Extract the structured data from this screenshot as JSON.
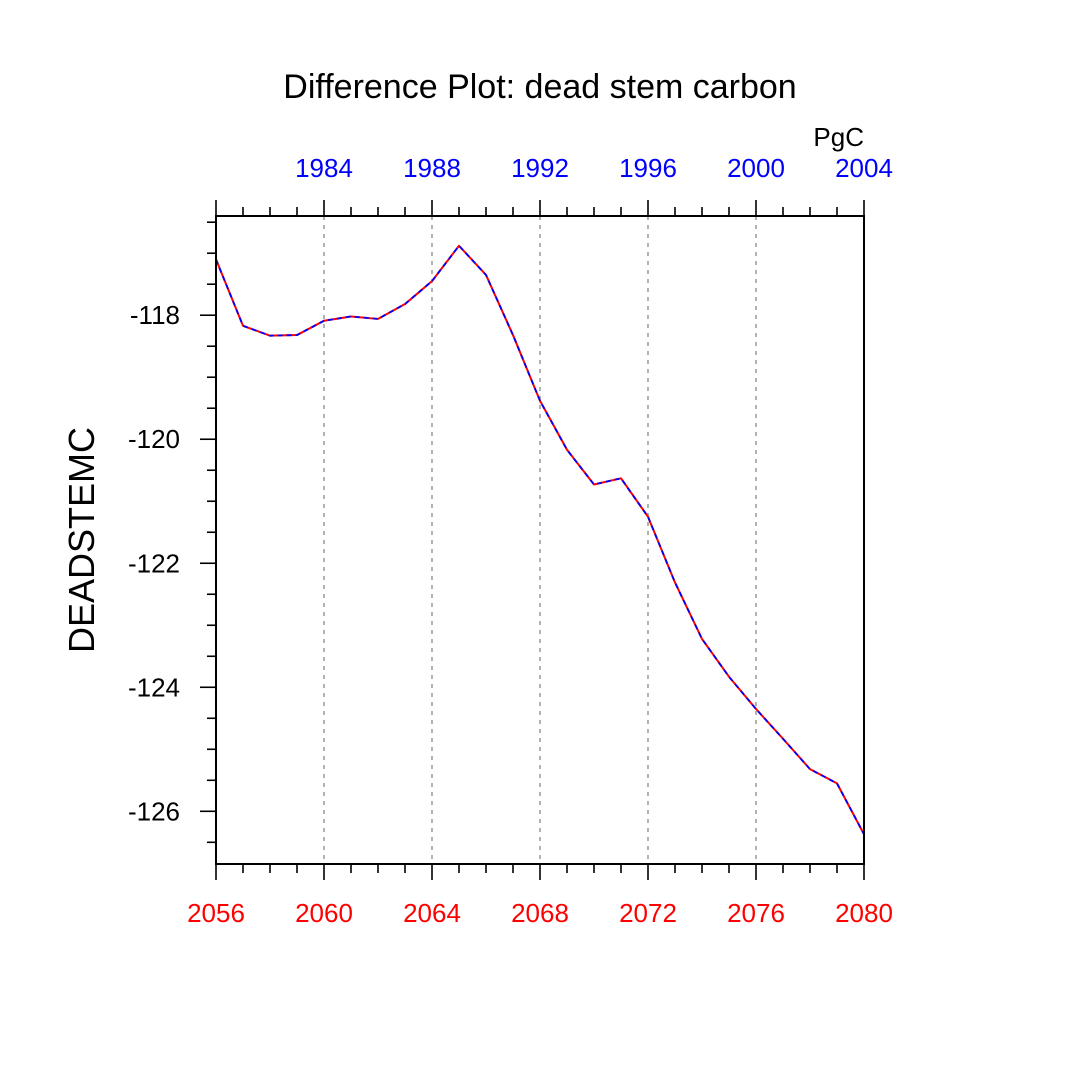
{
  "chart_data": {
    "type": "line",
    "title": "Difference Plot: dead stem carbon",
    "ylabel": "DEADSTEMC",
    "units": "PgC",
    "x_bottom": {
      "range": [
        2056,
        2080
      ],
      "ticks": [
        "2056",
        "2060",
        "2064",
        "2068",
        "2072",
        "2076",
        "2080"
      ],
      "color": "#ff0000"
    },
    "x_top": {
      "range": [
        1980,
        2004
      ],
      "ticks": [
        "1984",
        "1988",
        "1992",
        "1996",
        "2000",
        "2004"
      ],
      "color": "#0000ff"
    },
    "y": {
      "range": [
        -126.85,
        -116.4
      ],
      "ticks": [
        "-118",
        "-120",
        "-122",
        "-124",
        "-126"
      ]
    },
    "grid": "vertical dotted lines at bottom major ticks",
    "series": [
      {
        "color": "#ff0000",
        "style": "solid",
        "x": [
          2056,
          2057,
          2058,
          2059,
          2060,
          2061,
          2062,
          2063,
          2064,
          2065,
          2066,
          2067,
          2068,
          2069,
          2070,
          2071,
          2072,
          2073,
          2074,
          2075,
          2076,
          2077,
          2078,
          2079,
          2080
        ],
        "values": [
          -117.1,
          -118.17,
          -118.33,
          -118.32,
          -118.09,
          -118.02,
          -118.06,
          -117.82,
          -117.45,
          -116.88,
          -117.35,
          -118.32,
          -119.38,
          -120.17,
          -120.73,
          -120.63,
          -121.25,
          -122.31,
          -123.22,
          -123.83,
          -124.35,
          -124.83,
          -125.32,
          -125.55,
          -126.37
        ]
      },
      {
        "color": "#0000ff",
        "style": "dashed",
        "x": [
          2056,
          2057,
          2058,
          2059,
          2060,
          2061,
          2062,
          2063,
          2064,
          2065,
          2066,
          2067,
          2068,
          2069,
          2070,
          2071,
          2072,
          2073,
          2074,
          2075,
          2076,
          2077,
          2078,
          2079,
          2080
        ],
        "values": [
          -117.1,
          -118.17,
          -118.33,
          -118.32,
          -118.09,
          -118.02,
          -118.06,
          -117.82,
          -117.45,
          -116.88,
          -117.35,
          -118.32,
          -119.38,
          -120.17,
          -120.73,
          -120.63,
          -121.25,
          -122.31,
          -123.22,
          -123.83,
          -124.35,
          -124.83,
          -125.32,
          -125.55,
          -126.37
        ]
      }
    ]
  }
}
